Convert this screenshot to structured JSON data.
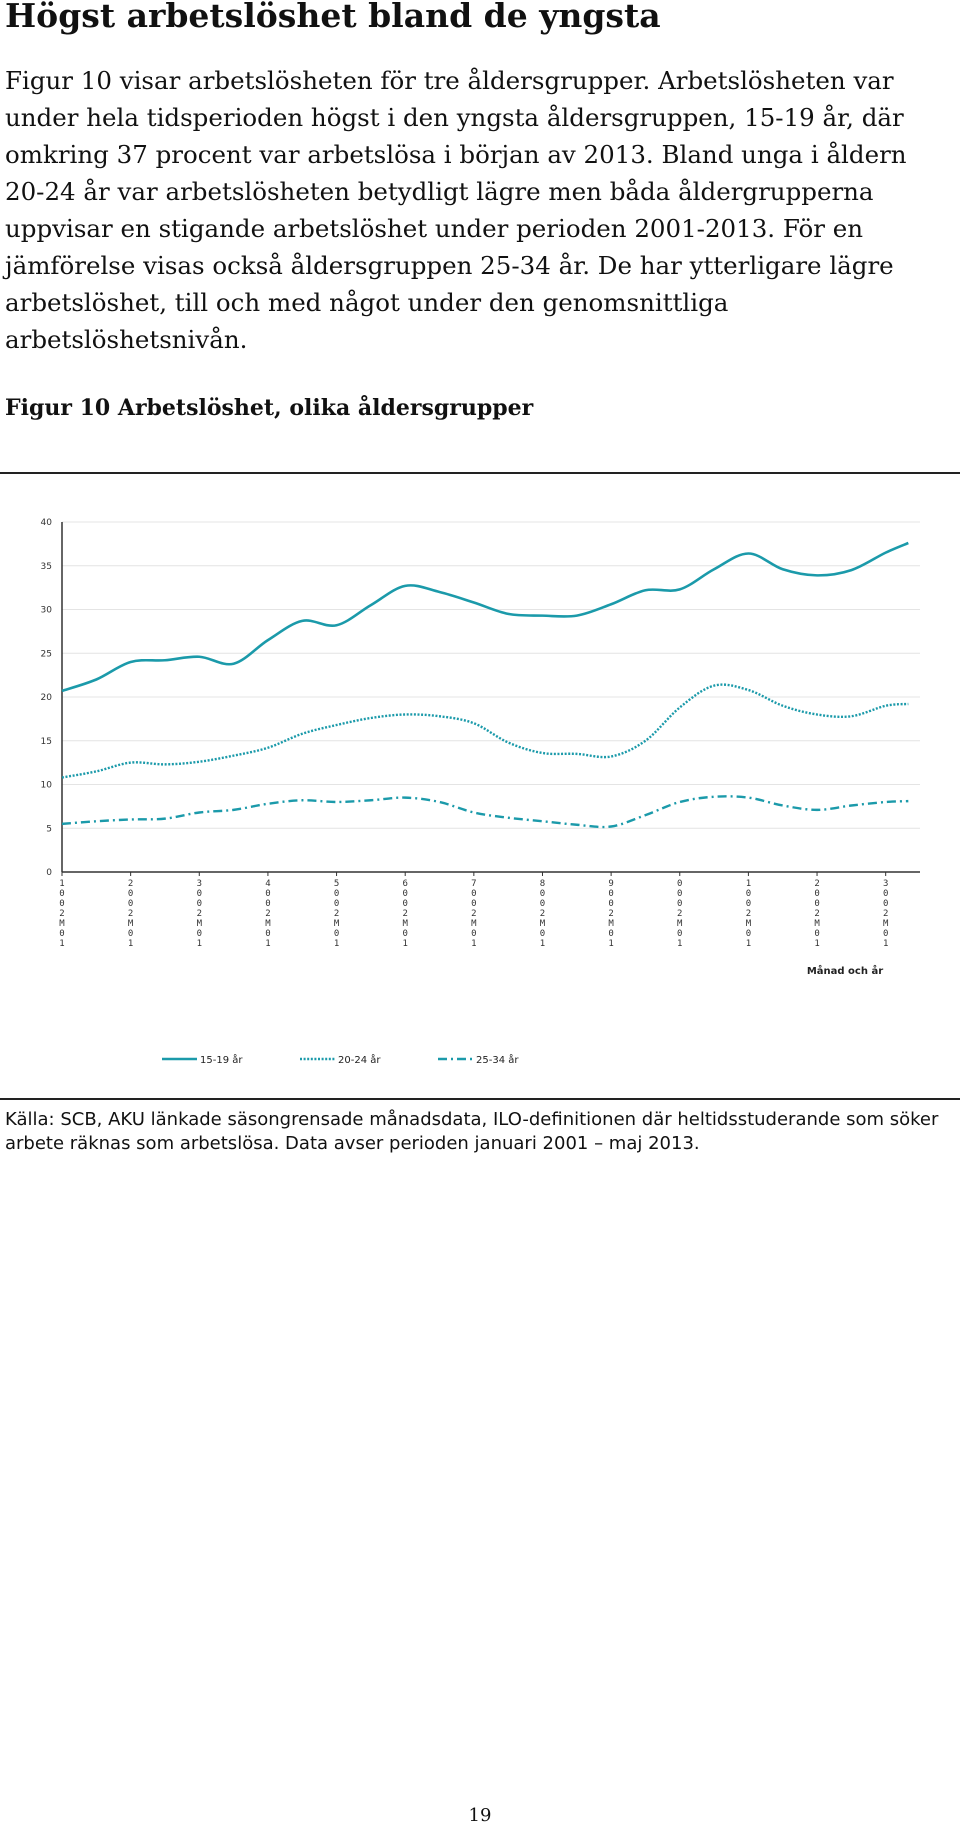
{
  "heading": "Högst arbetslöshet bland de yngsta",
  "body_text": "Figur 10 visar arbetslösheten för tre åldersgrupper. Arbetslösheten var under hela tidsperioden högst i den yngsta åldersgruppen, 15-19 år, där omkring 37 procent var arbetslösa i början av 2013. Bland unga i åldern 20-24 år var arbetslösheten betydligt lägre men båda åldergrupperna uppvisar en stigande arbetslöshet under perioden 2001-2013. För en jämförelse visas också åldersgruppen 25-34 år. De har ytterligare lägre arbetslöshet, till och med något under den genomsnittliga arbetslöshetsnivån.",
  "figure_title": "Figur 10 Arbetslöshet, olika åldersgrupper",
  "source_note": "Källa: SCB, AKU länkade säsongrensade månadsdata, ILO-definitionen där heltidsstuderande som söker arbete räknas som arbetslösa. Data avser perioden januari 2001 – maj 2013.",
  "page_number": "19",
  "chart_data": {
    "type": "line",
    "xlabel": "Månad och år",
    "ylabel": "",
    "ylim": [
      0,
      40
    ],
    "yticks": [
      "0",
      "5",
      "10",
      "15",
      "20",
      "25",
      "30",
      "35",
      "40"
    ],
    "categories": [
      "1",
      "2",
      "3",
      "4",
      "5",
      "6",
      "7",
      "8",
      "9",
      "0",
      "1",
      "2",
      "3"
    ],
    "x_tick_suffix": [
      "0",
      "0",
      "2",
      "M",
      "0",
      "1"
    ],
    "grid": true,
    "legend_position": "bottom",
    "x": [
      2001,
      2001.5,
      2002,
      2002.5,
      2003,
      2003.5,
      2004,
      2004.5,
      2005,
      2005.5,
      2006,
      2006.5,
      2007,
      2007.5,
      2008,
      2008.5,
      2009,
      2009.5,
      2010,
      2010.5,
      2011,
      2011.5,
      2012,
      2012.5,
      2013,
      2013.33
    ],
    "series": [
      {
        "name": "15-19 år",
        "color": "#1b9aaa",
        "style": "solid",
        "values": [
          20.7,
          22.0,
          24.0,
          24.2,
          24.6,
          23.8,
          26.5,
          28.7,
          28.2,
          30.5,
          32.7,
          32.0,
          30.8,
          29.5,
          29.3,
          29.3,
          30.6,
          32.2,
          32.3,
          34.6,
          36.4,
          34.6,
          33.9,
          34.5,
          36.5,
          37.6
        ]
      },
      {
        "name": "20-24 år",
        "color": "#1b9aaa",
        "style": "dotted",
        "values": [
          10.8,
          11.5,
          12.5,
          12.3,
          12.6,
          13.3,
          14.2,
          15.8,
          16.8,
          17.6,
          18.0,
          17.8,
          17.0,
          14.8,
          13.6,
          13.5,
          13.2,
          15.0,
          18.8,
          21.3,
          20.8,
          19.0,
          18.0,
          17.8,
          19.0,
          19.2
        ]
      },
      {
        "name": "25-34 år",
        "color": "#1b9aaa",
        "style": "dashdot",
        "values": [
          5.5,
          5.8,
          6.0,
          6.1,
          6.8,
          7.1,
          7.8,
          8.2,
          8.0,
          8.2,
          8.5,
          8.0,
          6.8,
          6.2,
          5.8,
          5.4,
          5.2,
          6.5,
          8.0,
          8.6,
          8.5,
          7.6,
          7.1,
          7.6,
          8.0,
          8.1
        ]
      }
    ]
  }
}
